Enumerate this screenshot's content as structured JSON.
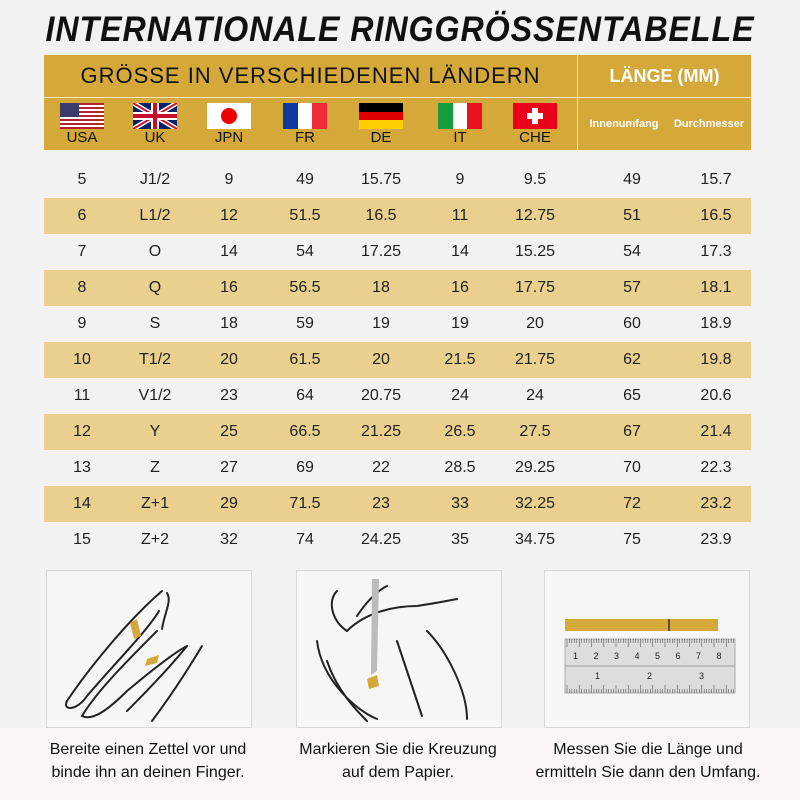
{
  "title": "INTERNATIONALE RINGGRÖSSENTABELLE",
  "header": {
    "countries_title": "GRÖSSE IN VERSCHIEDENEN LÄNDERN",
    "length_title": "LÄNGE (MM)",
    "countries": [
      "USA",
      "UK",
      "JPN",
      "FR",
      "DE",
      "IT",
      "CHE"
    ],
    "length_cols": [
      "Innenumfang",
      "Durchmesser"
    ]
  },
  "colors": {
    "header": "#d4a93a",
    "stripe": "#e9d08f",
    "background": "#f2f2f2"
  },
  "rows": [
    [
      "5",
      "J1/2",
      "9",
      "49",
      "15.75",
      "9",
      "9.5",
      "49",
      "15.7"
    ],
    [
      "6",
      "L1/2",
      "12",
      "51.5",
      "16.5",
      "11",
      "12.75",
      "51",
      "16.5"
    ],
    [
      "7",
      "O",
      "14",
      "54",
      "17.25",
      "14",
      "15.25",
      "54",
      "17.3"
    ],
    [
      "8",
      "Q",
      "16",
      "56.5",
      "18",
      "16",
      "17.75",
      "57",
      "18.1"
    ],
    [
      "9",
      "S",
      "18",
      "59",
      "19",
      "19",
      "20",
      "60",
      "18.9"
    ],
    [
      "10",
      "T1/2",
      "20",
      "61.5",
      "20",
      "21.5",
      "21.75",
      "62",
      "19.8"
    ],
    [
      "11",
      "V1/2",
      "23",
      "64",
      "20.75",
      "24",
      "24",
      "65",
      "20.6"
    ],
    [
      "12",
      "Y",
      "25",
      "66.5",
      "21.25",
      "26.5",
      "27.5",
      "67",
      "21.4"
    ],
    [
      "13",
      "Z",
      "27",
      "69",
      "22",
      "28.5",
      "29.25",
      "70",
      "22.3"
    ],
    [
      "14",
      "Z+1",
      "29",
      "71.5",
      "23",
      "33",
      "32.25",
      "72",
      "23.2"
    ],
    [
      "15",
      "Z+2",
      "32",
      "74",
      "24.25",
      "35",
      "34.75",
      "75",
      "23.9"
    ]
  ],
  "steps": [
    {
      "line1": "Bereite einen Zettel vor und",
      "line2": "binde ihn an deinen Finger."
    },
    {
      "line1": "Markieren Sie die Kreuzung",
      "line2": "auf dem Papier."
    },
    {
      "line1": "Messen Sie die Länge und",
      "line2": "ermitteln Sie dann den Umfang."
    }
  ],
  "ruler": {
    "cm_ticks": [
      "1",
      "2",
      "3",
      "4",
      "5",
      "6",
      "7",
      "8"
    ],
    "inch_ticks": [
      "1",
      "2",
      "3"
    ]
  }
}
